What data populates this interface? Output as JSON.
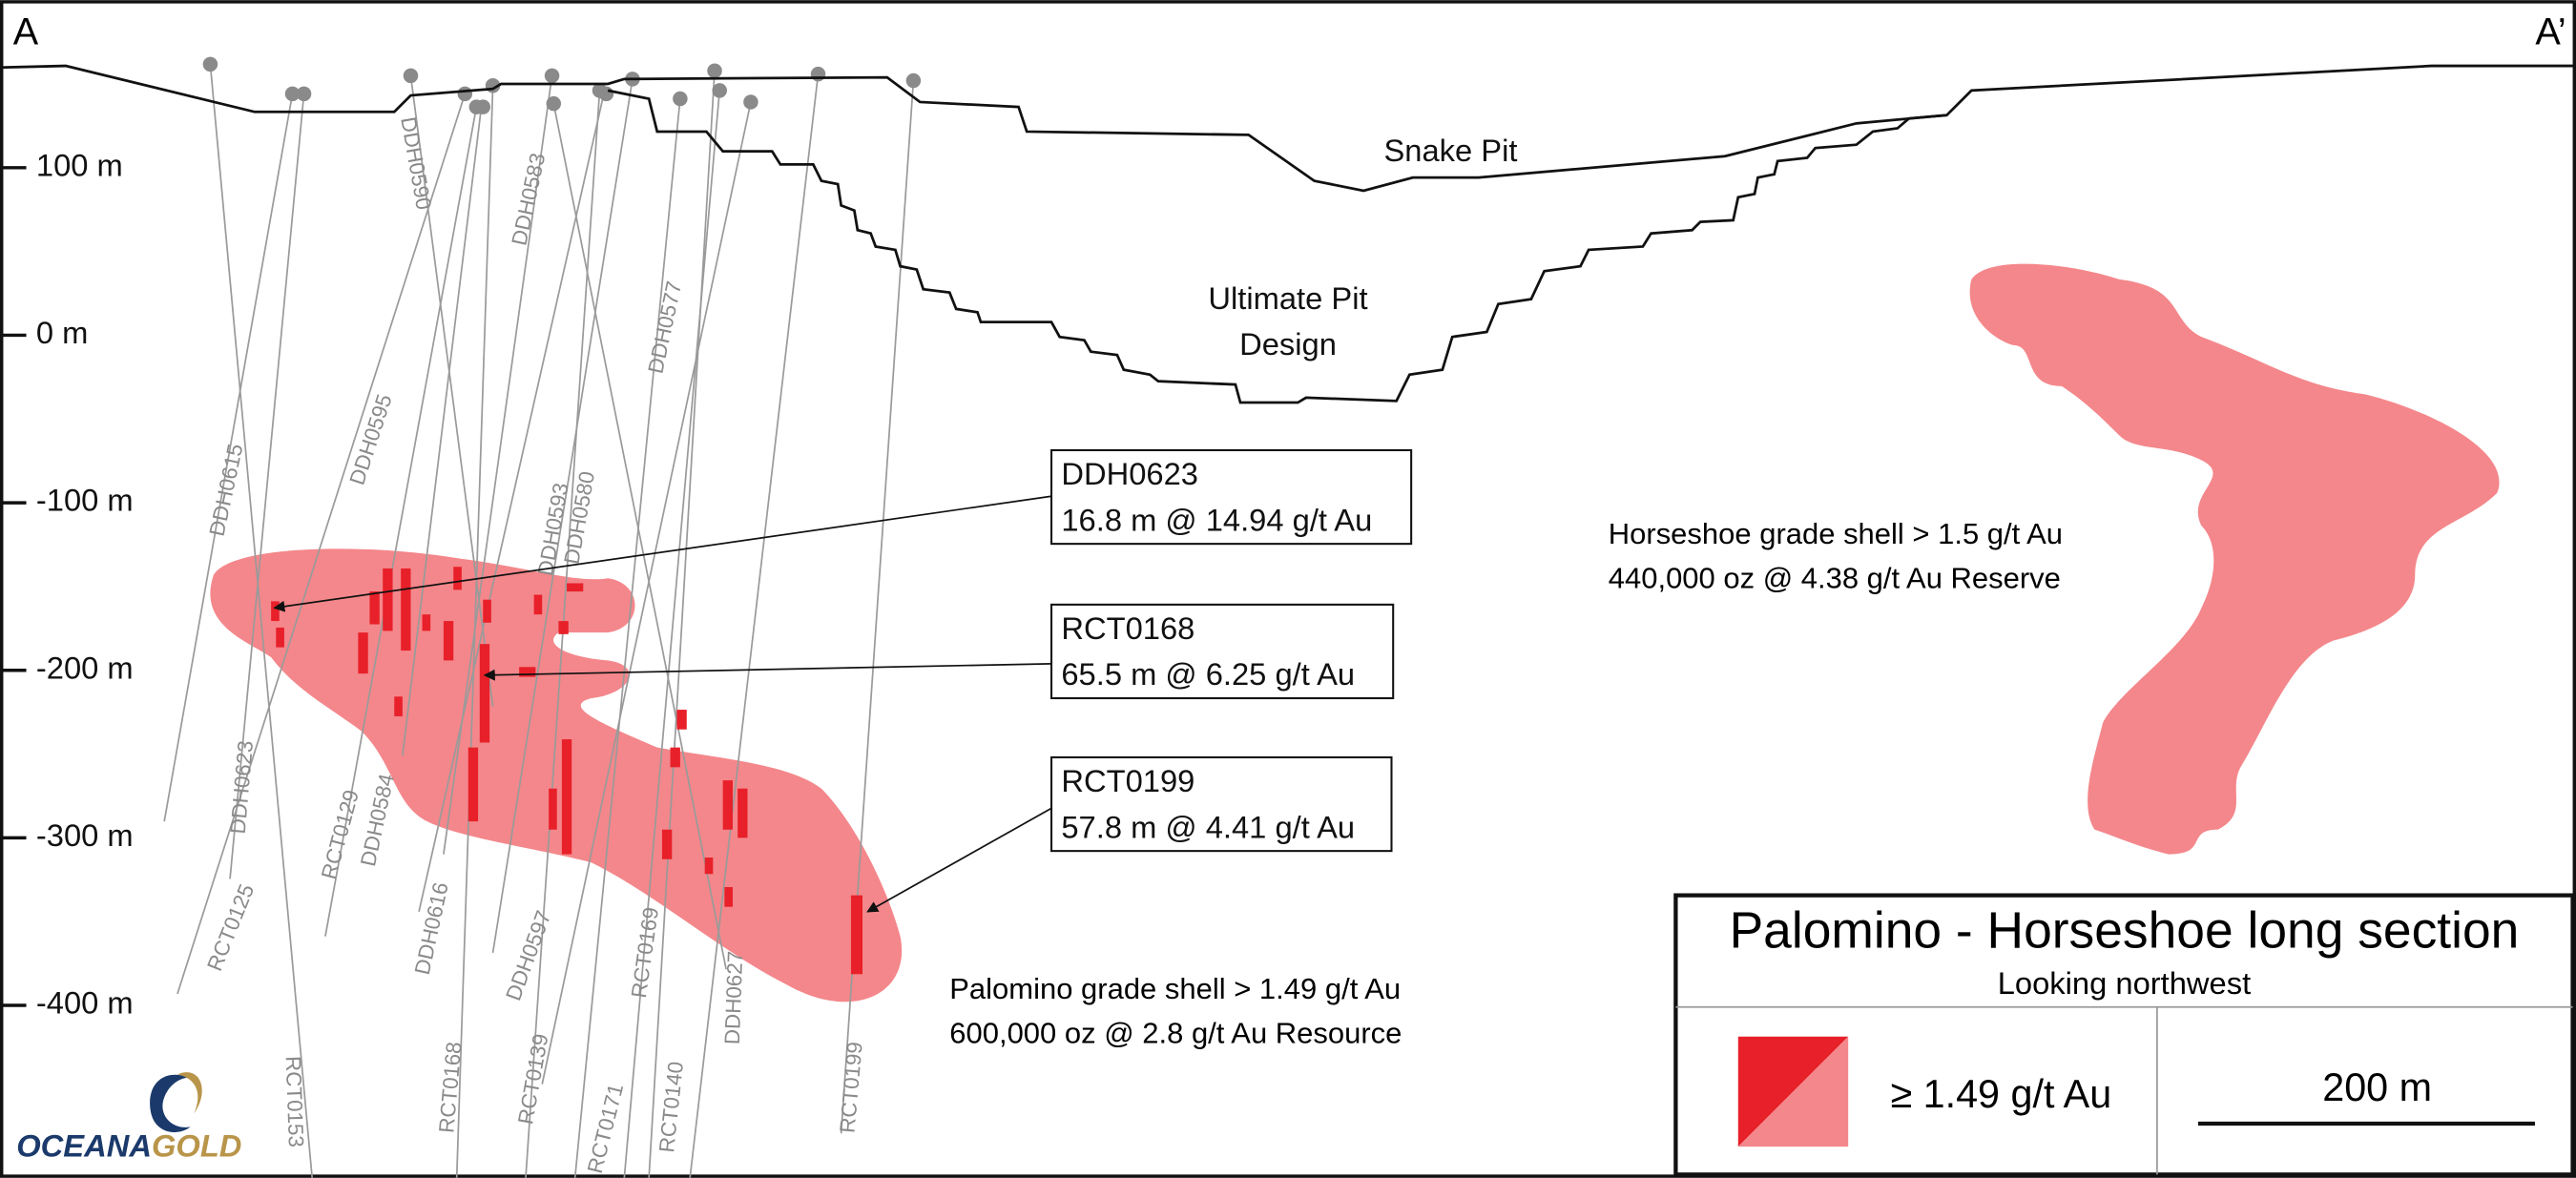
{
  "section": {
    "start": "A",
    "end": "A’"
  },
  "elevation_labels": [
    "100 m",
    "0 m",
    "-100 m",
    "-200 m",
    "-300 m",
    "-400 m"
  ],
  "pits": {
    "current": "Snake Pit",
    "design": [
      "Ultimate Pit",
      "Design"
    ]
  },
  "drillholes": [
    "DDH0590",
    "DDH0583",
    "DDH0577",
    "DDH0595",
    "DDH0615",
    "DDH0593",
    "DDH0580",
    "DDH0623",
    "RCT0125",
    "RCT0129",
    "DDH0584",
    "DDH0616",
    "DDH0597",
    "RCT0169",
    "DDH0627",
    "RCT0139",
    "RCT0168",
    "RCT0171",
    "RCT0140",
    "RCT0199",
    "RCT0153"
  ],
  "callouts": [
    {
      "hole": "DDH0623",
      "intercept": "16.8 m @ 14.94 g/t Au"
    },
    {
      "hole": "RCT0168",
      "intercept": "65.5 m @ 6.25 g/t Au"
    },
    {
      "hole": "RCT0199",
      "intercept": "57.8 m @ 4.41 g/t Au"
    }
  ],
  "shells": {
    "horseshoe": [
      "Horseshoe grade shell > 1.5 g/t Au",
      "440,000 oz @ 4.38 g/t Au Reserve"
    ],
    "palomino": [
      "Palomino grade shell > 1.49 g/t Au",
      "600,000 oz @ 2.8 g/t Au Resource"
    ]
  },
  "title_block": {
    "title": "Palomino - Horseshoe long section",
    "subtitle": "Looking northwest",
    "legend": "≥ 1.49 g/t Au",
    "scale": "200 m"
  },
  "logo": {
    "part1": "OCEANA",
    "part2": "GOLD"
  }
}
